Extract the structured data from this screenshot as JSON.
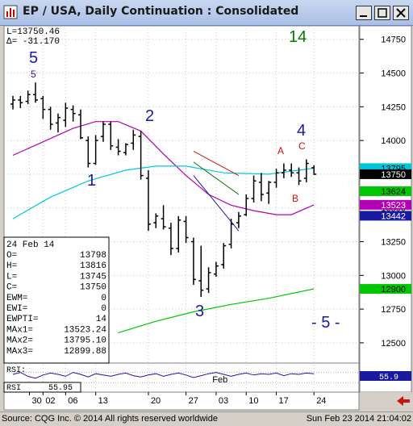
{
  "window": {
    "title": "EP / USA, Daily Continuation : Consolidated",
    "minimize_label": "_",
    "maximize_label": "□",
    "close_label": "✕"
  },
  "cursor": {
    "l_label": "L=13750.46",
    "delta_label": "Δ= -31.170"
  },
  "legend": {
    "date": "24 Feb 14",
    "rows": [
      {
        "label": "O=",
        "value": "13798"
      },
      {
        "label": "H=",
        "value": "13816"
      },
      {
        "label": "L=",
        "value": "13745"
      },
      {
        "label": "C=",
        "value": "13750"
      },
      {
        "label": "EWM=",
        "value": "0"
      },
      {
        "label": "EWI=",
        "value": "0"
      },
      {
        "label": "EWPTI=",
        "value": "14"
      },
      {
        "label": "MAx1=",
        "value": "13523.24"
      },
      {
        "label": "MAx2=",
        "value": "13795.10"
      },
      {
        "label": "MAx3=",
        "value": "12899.88"
      }
    ]
  },
  "rsi_panel": {
    "label": "RSI:",
    "value_label": "55.95",
    "marker_value": "55.9"
  },
  "status": {
    "source": "Source: CQG Inc. © 2014 All rights reserved worldwide",
    "timestamp": "Sun Feb 23 2014 21:04:02"
  },
  "colors": {
    "bars": "#000000",
    "ma1": "#b400b4",
    "ma2": "#00c8dc",
    "ma3": "#00c800",
    "wave_blue": "#1a1aa0",
    "wave_green": "#007a00",
    "abc_red": "#d01010"
  },
  "chart_data": {
    "type": "ohlc",
    "title": "EP / USA, Daily Continuation : Consolidated",
    "ylim": [
      12350,
      14850
    ],
    "y_ticks": [
      12500,
      12750,
      13000,
      13250,
      13500,
      13750,
      14000,
      14250,
      14500,
      14750
    ],
    "x_tick_labels": [
      "30",
      "02",
      "06",
      "13",
      "20",
      "27",
      "03",
      "10",
      "17",
      "24"
    ],
    "month_label": "Feb",
    "bars": [
      {
        "o": 14270,
        "h": 14330,
        "l": 14230,
        "c": 14300
      },
      {
        "o": 14300,
        "h": 14330,
        "l": 14240,
        "c": 14280
      },
      {
        "o": 14290,
        "h": 14370,
        "l": 14270,
        "c": 14340
      },
      {
        "o": 14340,
        "h": 14430,
        "l": 14280,
        "c": 14300
      },
      {
        "o": 14310,
        "h": 14330,
        "l": 14160,
        "c": 14230
      },
      {
        "o": 14230,
        "h": 14250,
        "l": 14080,
        "c": 14120
      },
      {
        "o": 14130,
        "h": 14200,
        "l": 14060,
        "c": 14170
      },
      {
        "o": 14150,
        "h": 14280,
        "l": 14100,
        "c": 14240
      },
      {
        "o": 14230,
        "h": 14260,
        "l": 14140,
        "c": 14200
      },
      {
        "o": 14190,
        "h": 14230,
        "l": 14010,
        "c": 14020
      },
      {
        "o": 14000,
        "h": 14030,
        "l": 13800,
        "c": 13830
      },
      {
        "o": 13830,
        "h": 14040,
        "l": 13820,
        "c": 14000
      },
      {
        "o": 14030,
        "h": 14140,
        "l": 13990,
        "c": 14120
      },
      {
        "o": 14120,
        "h": 14140,
        "l": 13930,
        "c": 13960
      },
      {
        "o": 13950,
        "h": 14010,
        "l": 13890,
        "c": 13920
      },
      {
        "o": 13910,
        "h": 13980,
        "l": 13890,
        "c": 13970
      },
      {
        "o": 13980,
        "h": 14080,
        "l": 13930,
        "c": 14040
      },
      {
        "o": 14030,
        "h": 14070,
        "l": 13710,
        "c": 13740
      },
      {
        "o": 13720,
        "h": 13780,
        "l": 13330,
        "c": 13380
      },
      {
        "o": 13390,
        "h": 13460,
        "l": 13350,
        "c": 13440
      },
      {
        "o": 13420,
        "h": 13520,
        "l": 13340,
        "c": 13360
      },
      {
        "o": 13350,
        "h": 13390,
        "l": 13150,
        "c": 13200
      },
      {
        "o": 13200,
        "h": 13440,
        "l": 13170,
        "c": 13410
      },
      {
        "o": 13400,
        "h": 13440,
        "l": 13240,
        "c": 13280
      },
      {
        "o": 13250,
        "h": 13280,
        "l": 12930,
        "c": 12970
      },
      {
        "o": 12960,
        "h": 13220,
        "l": 12840,
        "c": 12890
      },
      {
        "o": 12900,
        "h": 13060,
        "l": 12870,
        "c": 13020
      },
      {
        "o": 13010,
        "h": 13100,
        "l": 12990,
        "c": 13070
      },
      {
        "o": 13080,
        "h": 13240,
        "l": 13050,
        "c": 13220
      },
      {
        "o": 13230,
        "h": 13420,
        "l": 13200,
        "c": 13380
      },
      {
        "o": 13390,
        "h": 13470,
        "l": 13350,
        "c": 13440
      },
      {
        "o": 13450,
        "h": 13600,
        "l": 13440,
        "c": 13570
      },
      {
        "o": 13570,
        "h": 13740,
        "l": 13540,
        "c": 13700
      },
      {
        "o": 13690,
        "h": 13760,
        "l": 13550,
        "c": 13600
      },
      {
        "o": 13610,
        "h": 13700,
        "l": 13530,
        "c": 13690
      },
      {
        "o": 13690,
        "h": 13790,
        "l": 13650,
        "c": 13760
      },
      {
        "o": 13760,
        "h": 13830,
        "l": 13720,
        "c": 13780
      },
      {
        "o": 13780,
        "h": 13830,
        "l": 13730,
        "c": 13760
      },
      {
        "o": 13760,
        "h": 13800,
        "l": 13670,
        "c": 13700
      },
      {
        "o": 13720,
        "h": 13860,
        "l": 13690,
        "c": 13830
      },
      {
        "o": 13798,
        "h": 13816,
        "l": 13745,
        "c": 13750
      }
    ],
    "ma_series": [
      {
        "name": "MAx1",
        "color": "#b400b4",
        "points": [
          [
            0,
            13890
          ],
          [
            4,
            13990
          ],
          [
            8,
            14090
          ],
          [
            11,
            14140
          ],
          [
            14,
            14140
          ],
          [
            17,
            14070
          ],
          [
            20,
            13900
          ],
          [
            23,
            13740
          ],
          [
            26,
            13600
          ],
          [
            29,
            13520
          ],
          [
            32,
            13480
          ],
          [
            35,
            13450
          ],
          [
            37,
            13450
          ],
          [
            40,
            13523
          ]
        ]
      },
      {
        "name": "MAx2",
        "color": "#00c8dc",
        "points": [
          [
            0,
            13420
          ],
          [
            5,
            13580
          ],
          [
            10,
            13700
          ],
          [
            15,
            13780
          ],
          [
            19,
            13810
          ],
          [
            23,
            13810
          ],
          [
            28,
            13760
          ],
          [
            34,
            13750
          ],
          [
            40,
            13795
          ]
        ]
      },
      {
        "name": "MAx3",
        "color": "#00c800",
        "points": [
          [
            14,
            12575
          ],
          [
            19,
            12660
          ],
          [
            24,
            12730
          ],
          [
            29,
            12785
          ],
          [
            34,
            12830
          ],
          [
            40,
            12900
          ]
        ]
      }
    ],
    "lines": [
      {
        "color": "#d01010",
        "points": [
          [
            24,
            13920
          ],
          [
            30,
            13740
          ]
        ]
      },
      {
        "color": "#007000",
        "points": [
          [
            24,
            13840
          ],
          [
            30,
            13600
          ]
        ]
      },
      {
        "color": "#1a1aa0",
        "points": [
          [
            24,
            13740
          ],
          [
            30,
            13330
          ]
        ]
      }
    ],
    "price_markers": [
      {
        "value": "13795",
        "bg": "#00c8dc",
        "fg": "#000000"
      },
      {
        "value": "13750",
        "bg": "#000000",
        "fg": "#ffffff"
      },
      {
        "value": "13624",
        "bg": "#00c800",
        "fg": "#000000"
      },
      {
        "value": "13523",
        "bg": "#b400b4",
        "fg": "#ffffff"
      },
      {
        "value": "13442",
        "bg": "#1a1aa0",
        "fg": "#ffffff"
      },
      {
        "value": "12900",
        "bg": "#00c800",
        "fg": "#000000"
      }
    ],
    "annotations": [
      {
        "text": "5",
        "color": "#1a1aa0",
        "kind": "wave"
      },
      {
        "text": "5",
        "color": "#1a1aa0",
        "kind": "wave-small"
      },
      {
        "text": "1",
        "color": "#1a1aa0",
        "kind": "wave"
      },
      {
        "text": "2",
        "color": "#1a1aa0",
        "kind": "wave"
      },
      {
        "text": "3",
        "color": "#1a1aa0",
        "kind": "wave"
      },
      {
        "text": "4",
        "color": "#1a1aa0",
        "kind": "wave"
      },
      {
        "text": "14",
        "color": "#007a00",
        "kind": "wave"
      },
      {
        "text": "- 5 -",
        "color": "#1a1aa0",
        "kind": "wave"
      },
      {
        "text": "A",
        "color": "#d01010",
        "kind": "abc"
      },
      {
        "text": "B",
        "color": "#d01010",
        "kind": "abc"
      },
      {
        "text": "C",
        "color": "#d01010",
        "kind": "abc"
      }
    ],
    "rsi": [
      55,
      58,
      52,
      49,
      54,
      57,
      55,
      52,
      58,
      55,
      51,
      56,
      54,
      52,
      55,
      57,
      53,
      51,
      54,
      56,
      52,
      55,
      57,
      54,
      50,
      53,
      56,
      58,
      55,
      52,
      55,
      57,
      54,
      56,
      55,
      57,
      53,
      56,
      55,
      57,
      56
    ]
  }
}
